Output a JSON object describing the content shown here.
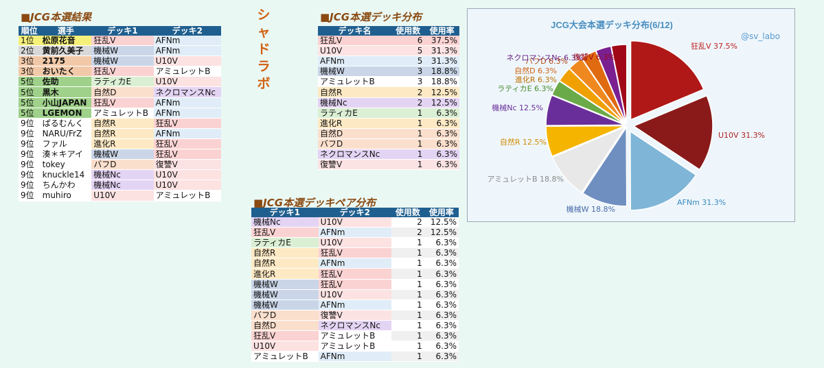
{
  "colors": {
    "V": "#fbd2d2",
    "W": "#cad6e8",
    "E": "#daefd3",
    "D": "#fbdfcd",
    "R": "#fde9c3",
    "Nc": "#e4d4f4",
    "B": "#ffffff",
    "U": "#fde2e2",
    "A": "#e0edf8",
    "Vg": "#fce3e3"
  },
  "results": {
    "title": "■JCG本選結果",
    "headers": [
      "順位",
      "選手",
      "デッキ1",
      "デッキ2"
    ],
    "rows": [
      {
        "rank": "1位",
        "player": "松原花音",
        "d1": "狂乱V",
        "d2": "AFNm",
        "rc": "#f5f07a",
        "pc": "#f5f07a",
        "c1": "V",
        "c2": "A"
      },
      {
        "rank": "2位",
        "player": "黄前久美子",
        "d1": "機械W",
        "d2": "AFNm",
        "rc": "#d8d8d8",
        "pc": "#d8d8d8",
        "c1": "W",
        "c2": "A"
      },
      {
        "rank": "3位",
        "player": "2175",
        "d1": "機械W",
        "d2": "U10V",
        "rc": "#f2c9a8",
        "pc": "#f2c9a8",
        "c1": "W",
        "c2": "U"
      },
      {
        "rank": "3位",
        "player": "おいたく",
        "d1": "狂乱V",
        "d2": "アミュレットB",
        "rc": "#f2c9a8",
        "pc": "#f2c9a8",
        "c1": "V",
        "c2": "B"
      },
      {
        "rank": "5位",
        "player": "佐助",
        "d1": "ラティカE",
        "d2": "U10V",
        "rc": "#9fd18a",
        "pc": "#9fd18a",
        "c1": "E",
        "c2": "U"
      },
      {
        "rank": "5位",
        "player": "黒木",
        "d1": "自然D",
        "d2": "ネクロマンスNc",
        "rc": "#9fd18a",
        "pc": "#9fd18a",
        "c1": "D",
        "c2": "Nc"
      },
      {
        "rank": "5位",
        "player": "小山JAPAN",
        "d1": "狂乱V",
        "d2": "AFNm",
        "rc": "#9fd18a",
        "pc": "#9fd18a",
        "c1": "V",
        "c2": "A"
      },
      {
        "rank": "5位",
        "player": "LGEMON",
        "d1": "アミュレットB",
        "d2": "AFNm",
        "rc": "#9fd18a",
        "pc": "#9fd18a",
        "c1": "B",
        "c2": "A"
      },
      {
        "rank": "9位",
        "player": "ぱるむんく",
        "d1": "自然R",
        "d2": "狂乱V",
        "rc": "#fff",
        "pc": "#fff",
        "c1": "R",
        "c2": "V"
      },
      {
        "rank": "9位",
        "player": "NARU/FrZ",
        "d1": "自然R",
        "d2": "AFNm",
        "rc": "#fff",
        "pc": "#fff",
        "c1": "R",
        "c2": "A"
      },
      {
        "rank": "9位",
        "player": "ファル",
        "d1": "進化R",
        "d2": "狂乱V",
        "rc": "#fff",
        "pc": "#fff",
        "c1": "R",
        "c2": "V"
      },
      {
        "rank": "9位",
        "player": "湊＊キアイ",
        "d1": "機械W",
        "d2": "狂乱V",
        "rc": "#fff",
        "pc": "#fff",
        "c1": "W",
        "c2": "V"
      },
      {
        "rank": "9位",
        "player": "tokey",
        "d1": "バフD",
        "d2": "復讐V",
        "rc": "#fff",
        "pc": "#fff",
        "c1": "D",
        "c2": "Vg"
      },
      {
        "rank": "9位",
        "player": "knuckle14",
        "d1": "機械Nc",
        "d2": "U10V",
        "rc": "#fff",
        "pc": "#fff",
        "c1": "Nc",
        "c2": "U"
      },
      {
        "rank": "9位",
        "player": "ちんかわ",
        "d1": "機械Nc",
        "d2": "U10V",
        "rc": "#fff",
        "pc": "#fff",
        "c1": "Nc",
        "c2": "U"
      },
      {
        "rank": "9位",
        "player": "muhiro",
        "d1": "U10V",
        "d2": "アミュレットB",
        "rc": "#fff",
        "pc": "#fff",
        "c1": "U",
        "c2": "B"
      }
    ]
  },
  "side_title": "シャドラボ",
  "dist": {
    "title": "■JCG本選デッキ分布",
    "headers": [
      "デッキ名",
      "使用数",
      "使用率"
    ],
    "rows": [
      {
        "name": "狂乱V",
        "count": "6",
        "rate": "37.5%",
        "c": "V"
      },
      {
        "name": "U10V",
        "count": "5",
        "rate": "31.3%",
        "c": "U"
      },
      {
        "name": "AFNm",
        "count": "5",
        "rate": "31.3%",
        "c": "A"
      },
      {
        "name": "機械W",
        "count": "3",
        "rate": "18.8%",
        "c": "W"
      },
      {
        "name": "アミュレットB",
        "count": "3",
        "rate": "18.8%",
        "c": "B"
      },
      {
        "name": "自然R",
        "count": "2",
        "rate": "12.5%",
        "c": "R"
      },
      {
        "name": "機械Nc",
        "count": "2",
        "rate": "12.5%",
        "c": "Nc"
      },
      {
        "name": "ラティカE",
        "count": "1",
        "rate": "6.3%",
        "c": "E"
      },
      {
        "name": "進化R",
        "count": "1",
        "rate": "6.3%",
        "c": "R"
      },
      {
        "name": "自然D",
        "count": "1",
        "rate": "6.3%",
        "c": "D"
      },
      {
        "name": "バフD",
        "count": "1",
        "rate": "6.3%",
        "c": "D"
      },
      {
        "name": "ネクロマンスNc",
        "count": "1",
        "rate": "6.3%",
        "c": "Nc"
      },
      {
        "name": "復讐V",
        "count": "1",
        "rate": "6.3%",
        "c": "Vg"
      }
    ]
  },
  "pairs": {
    "title": "■JCG本選デッキペア分布",
    "headers": [
      "デッキ1",
      "デッキ2",
      "使用数",
      "使用率"
    ],
    "rows": [
      {
        "d1": "機械Nc",
        "d2": "U10V",
        "count": "2",
        "rate": "12.5%",
        "c1": "Nc",
        "c2": "U"
      },
      {
        "d1": "狂乱V",
        "d2": "AFNm",
        "count": "2",
        "rate": "12.5%",
        "c1": "V",
        "c2": "A"
      },
      {
        "d1": "ラティカE",
        "d2": "U10V",
        "count": "1",
        "rate": "6.3%",
        "c1": "E",
        "c2": "U"
      },
      {
        "d1": "自然R",
        "d2": "狂乱V",
        "count": "1",
        "rate": "6.3%",
        "c1": "R",
        "c2": "V"
      },
      {
        "d1": "自然R",
        "d2": "AFNm",
        "count": "1",
        "rate": "6.3%",
        "c1": "R",
        "c2": "A"
      },
      {
        "d1": "進化R",
        "d2": "狂乱V",
        "count": "1",
        "rate": "6.3%",
        "c1": "R",
        "c2": "V"
      },
      {
        "d1": "機械W",
        "d2": "狂乱V",
        "count": "1",
        "rate": "6.3%",
        "c1": "W",
        "c2": "V"
      },
      {
        "d1": "機械W",
        "d2": "U10V",
        "count": "1",
        "rate": "6.3%",
        "c1": "W",
        "c2": "U"
      },
      {
        "d1": "機械W",
        "d2": "AFNm",
        "count": "1",
        "rate": "6.3%",
        "c1": "W",
        "c2": "A"
      },
      {
        "d1": "バフD",
        "d2": "復讐V",
        "count": "1",
        "rate": "6.3%",
        "c1": "D",
        "c2": "Vg"
      },
      {
        "d1": "自然D",
        "d2": "ネクロマンスNc",
        "count": "1",
        "rate": "6.3%",
        "c1": "D",
        "c2": "Nc"
      },
      {
        "d1": "狂乱V",
        "d2": "アミュレットB",
        "count": "1",
        "rate": "6.3%",
        "c1": "V",
        "c2": "B"
      },
      {
        "d1": "U10V",
        "d2": "アミュレットB",
        "count": "1",
        "rate": "6.3%",
        "c1": "U",
        "c2": "B"
      },
      {
        "d1": "アミュレットB",
        "d2": "AFNm",
        "count": "1",
        "rate": "6.3%",
        "c1": "B",
        "c2": "A"
      }
    ]
  },
  "chart_data": {
    "type": "pie",
    "title": "JCG大会本選デッキ分布(6/12)",
    "watermark": "@sv_labo",
    "slices": [
      {
        "label": "狂乱V",
        "value": 37.5,
        "color": "#b01818",
        "text": "狂乱V 37.5%",
        "lc": "#c02020"
      },
      {
        "label": "U10V",
        "value": 31.3,
        "color": "#8a1a1a",
        "text": "U10V 31.3%",
        "lc": "#b02020"
      },
      {
        "label": "AFNm",
        "value": 31.3,
        "color": "#7fb5d6",
        "text": "AFNm 31.3%",
        "lc": "#3a88c0"
      },
      {
        "label": "機械W",
        "value": 18.8,
        "color": "#6f8fc0",
        "text": "機械W 18.8%",
        "lc": "#4a6aa8"
      },
      {
        "label": "アミュレットB",
        "value": 18.8,
        "color": "#e8e8e8",
        "text": "アミュレットB 18.8%",
        "lc": "#888888"
      },
      {
        "label": "自然R",
        "value": 12.5,
        "color": "#f5b400",
        "text": "自然R 12.5%",
        "lc": "#d08a00"
      },
      {
        "label": "機械Nc",
        "value": 12.5,
        "color": "#6a2e9a",
        "text": "機械Nc 12.5%",
        "lc": "#6a2e9a"
      },
      {
        "label": "ラティカE",
        "value": 6.3,
        "color": "#6aaa48",
        "text": "ラティカE 6.3%",
        "lc": "#4a8a30"
      },
      {
        "label": "進化R",
        "value": 6.3,
        "color": "#f0a000",
        "text": "進化R 6.3%",
        "lc": "#c07000"
      },
      {
        "label": "自然D",
        "value": 6.3,
        "color": "#f08820",
        "text": "自然D 6.3%",
        "lc": "#d06010"
      },
      {
        "label": "バフD",
        "value": 6.3,
        "color": "#e06a10",
        "text": "バフD 6.3%",
        "lc": "#b04a10"
      },
      {
        "label": "ネクロマンスNc",
        "value": 6.3,
        "color": "#7a2090",
        "text": "ネクロマンスNc 6.3%",
        "lc": "#6a2080"
      },
      {
        "label": "復讐V",
        "value": 6.3,
        "color": "#a00818",
        "text": "復讐V 6.3%",
        "lc": "#a00818"
      }
    ]
  }
}
